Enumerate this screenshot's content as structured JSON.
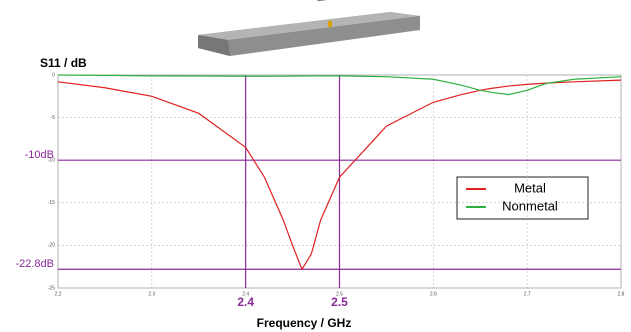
{
  "chart_data": {
    "type": "line",
    "title": "S11 / dB",
    "x_label": "Frequency / GHz",
    "x": [
      2.2,
      2.25,
      2.3,
      2.35,
      2.4,
      2.42,
      2.44,
      2.45,
      2.46,
      2.47,
      2.48,
      2.5,
      2.55,
      2.6,
      2.63,
      2.65,
      2.66,
      2.68,
      2.7,
      2.72,
      2.75,
      2.8
    ],
    "series": [
      {
        "name": "Metal",
        "color": "#e02020",
        "values": [
          -0.8,
          -1.5,
          -2.5,
          -4.5,
          -8.5,
          -12,
          -17,
          -20,
          -22.8,
          -21,
          -17,
          -12,
          -6,
          -3.2,
          -2.3,
          -1.8,
          -1.6,
          -1.3,
          -1.1,
          -0.95,
          -0.8,
          -0.6
        ]
      },
      {
        "name": "Nonmetal",
        "color": "#30b040",
        "values": [
          0,
          -0.05,
          -0.1,
          -0.12,
          -0.15,
          -0.15,
          -0.14,
          -0.13,
          -0.12,
          -0.11,
          -0.1,
          -0.1,
          -0.2,
          -0.5,
          -1.2,
          -1.8,
          -2.0,
          -2.3,
          -1.8,
          -1.0,
          -0.5,
          -0.2
        ]
      }
    ],
    "xlim": [
      2.2,
      2.8
    ],
    "xticks": [
      2.2,
      2.3,
      2.4,
      2.5,
      2.6,
      2.7,
      2.8
    ],
    "ylim": [
      -25,
      0
    ],
    "yticks": [
      0,
      -5,
      -10,
      -15,
      -20,
      -25
    ],
    "grid": true,
    "legend": "right",
    "reference_lines": [
      {
        "axis": "y",
        "value": -10,
        "label": "-10dB"
      },
      {
        "axis": "y",
        "value": -22.8,
        "label": "-22.8dB"
      },
      {
        "axis": "x",
        "value": 2.4,
        "label": "2.4"
      },
      {
        "axis": "x",
        "value": 2.5,
        "label": "2.5"
      }
    ],
    "reference_color": "#8a2a9a"
  }
}
